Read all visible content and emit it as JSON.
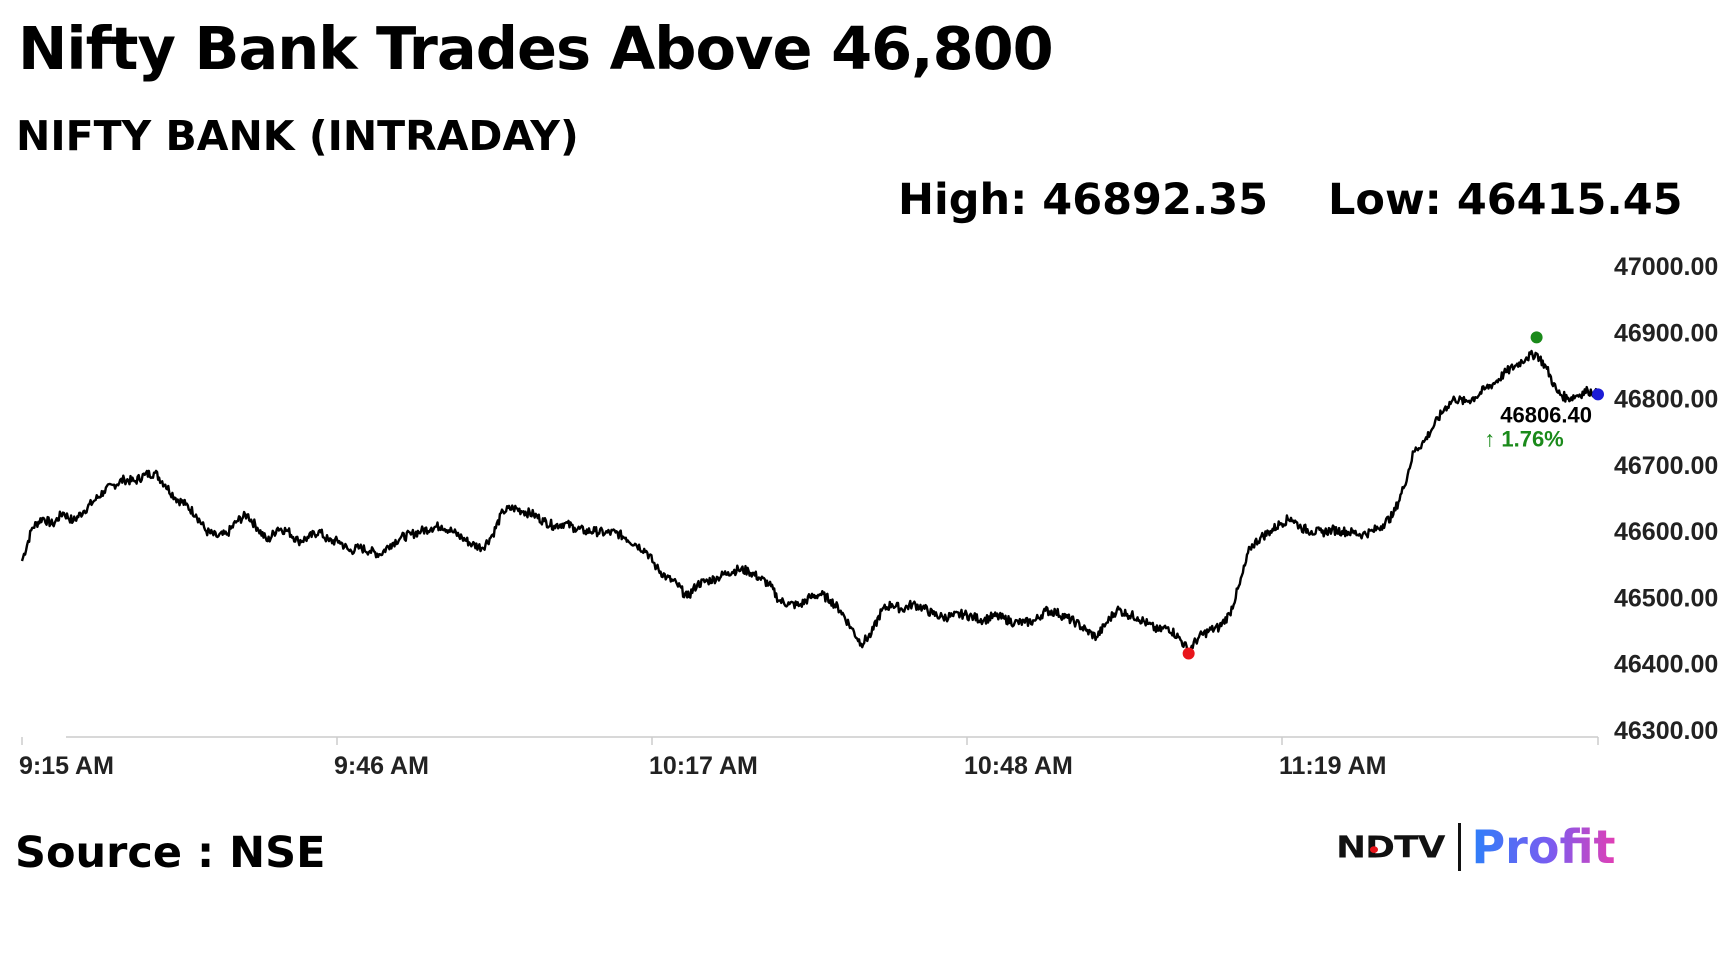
{
  "header": {
    "headline": "Nifty Bank Trades Above 46,800",
    "subtitle": "NIFTY BANK (INTRADAY)",
    "high_text": "High: 46892.35",
    "low_text": "Low: 46415.45"
  },
  "footer": {
    "source": "Source : NSE",
    "logo_ndtv": "NDTV",
    "logo_profit": "Profit"
  },
  "colors": {
    "line": "#000000",
    "high_marker": "#1a8a1a",
    "low_marker": "#e8151b",
    "last_marker": "#1c1cd6",
    "change_text": "#1a8a1a",
    "axis": "#cccccc"
  },
  "chart_data": {
    "type": "line",
    "title": "NIFTY BANK (INTRADAY)",
    "xlabel": "",
    "ylabel": "",
    "x_tick_labels": [
      "9:15 AM",
      "9:46 AM",
      "10:17 AM",
      "10:48 AM",
      "11:19 AM"
    ],
    "y_tick_labels": [
      "47000.00",
      "46900.00",
      "46800.00",
      "46700.00",
      "46600.00",
      "46500.00",
      "46400.00",
      "46300.00"
    ],
    "ylim": [
      46300,
      47000
    ],
    "x_range_minutes": [
      0,
      154
    ],
    "grid": false,
    "y_axis_position": "right",
    "series": [
      {
        "points": [
          [
            0,
            46555
          ],
          [
            1,
            46605
          ],
          [
            2,
            46620
          ],
          [
            3,
            46610
          ],
          [
            4,
            46628
          ],
          [
            5,
            46615
          ],
          [
            6,
            46630
          ],
          [
            7,
            46645
          ],
          [
            8,
            46660
          ],
          [
            9,
            46670
          ],
          [
            10,
            46678
          ],
          [
            11,
            46675
          ],
          [
            12,
            46685
          ],
          [
            13,
            46688
          ],
          [
            14,
            46670
          ],
          [
            15,
            46650
          ],
          [
            16,
            46640
          ],
          [
            17,
            46625
          ],
          [
            18,
            46600
          ],
          [
            19,
            46592
          ],
          [
            20,
            46595
          ],
          [
            21,
            46615
          ],
          [
            22,
            46625
          ],
          [
            23,
            46605
          ],
          [
            24,
            46585
          ],
          [
            25,
            46605
          ],
          [
            26,
            46600
          ],
          [
            27,
            46585
          ],
          [
            28,
            46590
          ],
          [
            29,
            46600
          ],
          [
            30,
            46585
          ],
          [
            31,
            46585
          ],
          [
            32,
            46570
          ],
          [
            33,
            46575
          ],
          [
            34,
            46570
          ],
          [
            35,
            46565
          ],
          [
            36,
            46580
          ],
          [
            37,
            46590
          ],
          [
            38,
            46595
          ],
          [
            39,
            46600
          ],
          [
            40,
            46605
          ],
          [
            41,
            46608
          ],
          [
            42,
            46600
          ],
          [
            43,
            46590
          ],
          [
            44,
            46580
          ],
          [
            45,
            46575
          ],
          [
            46,
            46595
          ],
          [
            47,
            46630
          ],
          [
            48,
            46635
          ],
          [
            49,
            46630
          ],
          [
            50,
            46625
          ],
          [
            51,
            46615
          ],
          [
            52,
            46608
          ],
          [
            53,
            46612
          ],
          [
            54,
            46605
          ],
          [
            55,
            46600
          ],
          [
            56,
            46600
          ],
          [
            57,
            46597
          ],
          [
            58,
            46598
          ],
          [
            59,
            46590
          ],
          [
            60,
            46580
          ],
          [
            61,
            46570
          ],
          [
            62,
            46545
          ],
          [
            63,
            46530
          ],
          [
            64,
            46520
          ],
          [
            65,
            46500
          ],
          [
            66,
            46520
          ],
          [
            67,
            46525
          ],
          [
            68,
            46530
          ],
          [
            69,
            46538
          ],
          [
            70,
            46542
          ],
          [
            71,
            46540
          ],
          [
            72,
            46530
          ],
          [
            73,
            46520
          ],
          [
            74,
            46495
          ],
          [
            75,
            46490
          ],
          [
            76,
            46488
          ],
          [
            77,
            46500
          ],
          [
            78,
            46505
          ],
          [
            79,
            46496
          ],
          [
            80,
            46480
          ],
          [
            81,
            46455
          ],
          [
            82,
            46430
          ],
          [
            83,
            46445
          ],
          [
            84,
            46480
          ],
          [
            85,
            46490
          ],
          [
            86,
            46482
          ],
          [
            87,
            46490
          ],
          [
            88,
            46485
          ],
          [
            89,
            46475
          ],
          [
            90,
            46470
          ],
          [
            91,
            46472
          ],
          [
            92,
            46475
          ],
          [
            93,
            46470
          ],
          [
            94,
            46466
          ],
          [
            95,
            46472
          ],
          [
            96,
            46468
          ],
          [
            97,
            46462
          ],
          [
            98,
            46462
          ],
          [
            99,
            46465
          ],
          [
            100,
            46480
          ],
          [
            101,
            46478
          ],
          [
            102,
            46470
          ],
          [
            103,
            46462
          ],
          [
            104,
            46450
          ],
          [
            105,
            46440
          ],
          [
            106,
            46462
          ],
          [
            107,
            46482
          ],
          [
            108,
            46475
          ],
          [
            109,
            46470
          ],
          [
            110,
            46460
          ],
          [
            111,
            46450
          ],
          [
            112,
            46455
          ],
          [
            113,
            46440
          ],
          [
            114,
            46420
          ],
          [
            115,
            46440
          ],
          [
            116,
            46450
          ],
          [
            117,
            46455
          ],
          [
            118,
            46475
          ],
          [
            119,
            46520
          ],
          [
            120,
            46575
          ],
          [
            121,
            46590
          ],
          [
            122,
            46600
          ],
          [
            123,
            46612
          ],
          [
            124,
            46620
          ],
          [
            125,
            46605
          ],
          [
            126,
            46600
          ],
          [
            127,
            46598
          ],
          [
            128,
            46602
          ],
          [
            129,
            46600
          ],
          [
            130,
            46598
          ],
          [
            131,
            46595
          ],
          [
            132,
            46600
          ],
          [
            133,
            46610
          ],
          [
            134,
            46625
          ],
          [
            135,
            46665
          ],
          [
            136,
            46720
          ],
          [
            137,
            46735
          ],
          [
            138,
            46760
          ],
          [
            139,
            46785
          ],
          [
            140,
            46800
          ],
          [
            141,
            46795
          ],
          [
            142,
            46802
          ],
          [
            143,
            46815
          ],
          [
            144,
            46825
          ],
          [
            145,
            46840
          ],
          [
            146,
            46850
          ],
          [
            147,
            46862
          ],
          [
            148,
            46868
          ],
          [
            149,
            46845
          ],
          [
            150,
            46810
          ],
          [
            151,
            46800
          ],
          [
            152,
            46805
          ],
          [
            153,
            46812
          ],
          [
            154,
            46806.4
          ]
        ]
      }
    ],
    "high": {
      "x_minutes": 148,
      "value": 46892.35
    },
    "low": {
      "x_minutes": 114,
      "value": 46415.45
    },
    "last": {
      "x_minutes": 154,
      "value_label": "46806.40",
      "change_label": "↑ 1.76%"
    }
  }
}
